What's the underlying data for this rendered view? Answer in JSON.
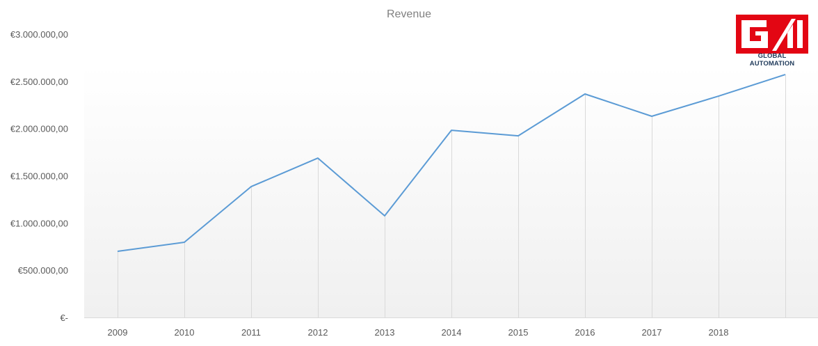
{
  "chart_data": {
    "type": "line",
    "title": "Revenue",
    "xlabel": "",
    "ylabel": "",
    "categories": [
      "2009",
      "2010",
      "2011",
      "2012",
      "2013",
      "2014",
      "2015",
      "2016",
      "2017",
      "2018",
      ""
    ],
    "series": [
      {
        "name": "Revenue",
        "color": "#5b9bd5",
        "values": [
          700000,
          796000,
          1385000,
          1687000,
          1076000,
          1982000,
          1923000,
          2366000,
          2130000,
          2343000,
          2572000
        ]
      }
    ],
    "ylim": [
      0,
      3000000
    ],
    "yticks": [
      0,
      500000,
      1000000,
      1500000,
      2000000,
      2500000,
      3000000
    ],
    "ytick_labels": [
      "€-",
      "€500.000,00",
      "€1.000.000,00",
      "€1.500.000,00",
      "€2.000.000,00",
      "€2.500.000,00",
      "€3.000.000,00"
    ],
    "grid": false,
    "drop_lines": true,
    "legend": "none"
  },
  "logo": {
    "text": "GLOBAL AUTOMATION",
    "mark": "GA",
    "color": "#e30613"
  }
}
